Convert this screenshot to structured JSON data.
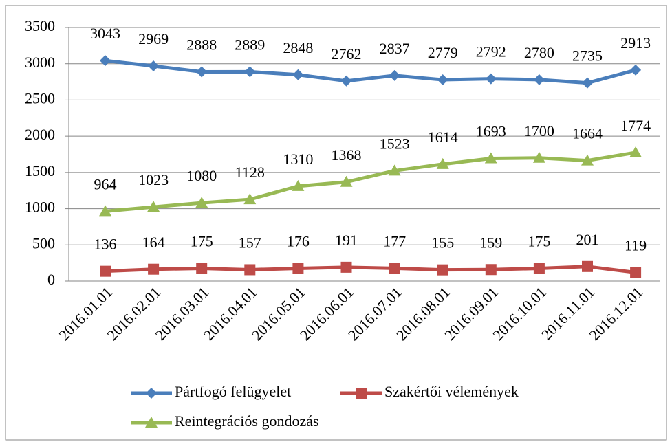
{
  "chart_data": {
    "type": "line",
    "categories": [
      "2016.01.01",
      "2016.02.01",
      "2016.03.01",
      "2016.04.01",
      "2016.05.01",
      "2016.06.01",
      "2016.07.01",
      "2016.08.01",
      "2016.09.01",
      "2016.10.01",
      "2016.11.01",
      "2016.12.01"
    ],
    "series": [
      {
        "name": "Pártfogó felügyelet",
        "color": "#4a7ebb",
        "marker": "diamond",
        "values": [
          3043,
          2969,
          2888,
          2889,
          2848,
          2762,
          2837,
          2779,
          2792,
          2780,
          2735,
          2913
        ]
      },
      {
        "name": "Szakértői vélemények",
        "color": "#be4b48",
        "marker": "square",
        "values": [
          136,
          164,
          175,
          157,
          176,
          191,
          177,
          155,
          159,
          175,
          201,
          119
        ]
      },
      {
        "name": "Reintegrációs gondozás",
        "color": "#98b954",
        "marker": "triangle",
        "values": [
          964,
          1023,
          1080,
          1128,
          1310,
          1368,
          1523,
          1614,
          1693,
          1700,
          1664,
          1774
        ]
      }
    ],
    "ylim": [
      0,
      3500
    ],
    "yticks": [
      0,
      500,
      1000,
      1500,
      2000,
      2500,
      3000,
      3500
    ],
    "grid": true,
    "data_labels": true,
    "legend": "bottom"
  }
}
